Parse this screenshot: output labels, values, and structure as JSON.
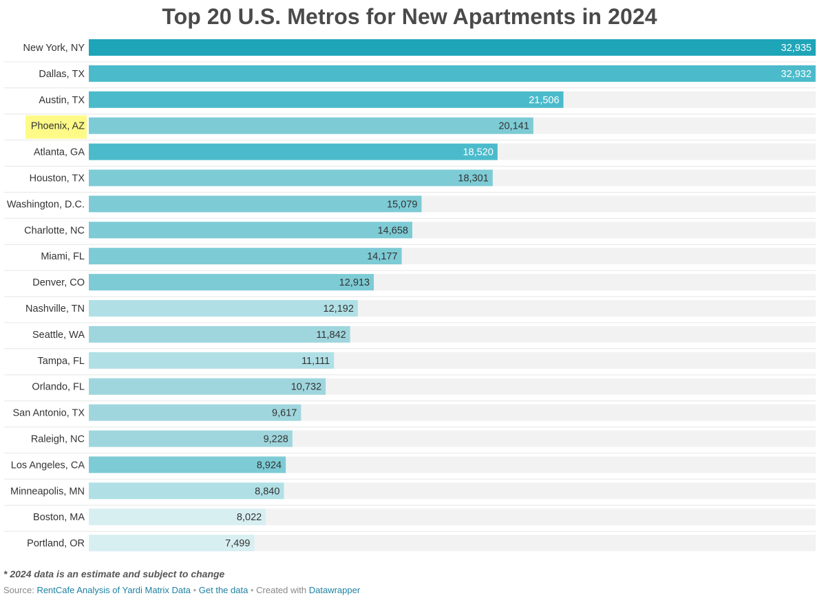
{
  "chart_data": {
    "type": "bar",
    "orientation": "horizontal",
    "title": "Top 20 U.S. Metros for New Apartments in 2024",
    "categories": [
      "New York, NY",
      "Dallas, TX",
      "Austin, TX",
      "Phoenix, AZ",
      "Atlanta, GA",
      "Houston, TX",
      "Washington, D.C.",
      "Charlotte, NC",
      "Miami, FL",
      "Denver, CO",
      "Nashville, TN",
      "Seattle, WA",
      "Tampa, FL",
      "Orlando, FL",
      "San Antonio, TX",
      "Raleigh, NC",
      "Los Angeles, CA",
      "Minneapolis, MN",
      "Boston, MA",
      "Portland, OR"
    ],
    "values": [
      32935,
      32932,
      21506,
      20141,
      18520,
      18301,
      15079,
      14658,
      14177,
      12913,
      12192,
      11842,
      11111,
      10732,
      9617,
      9228,
      8924,
      8840,
      8022,
      7499
    ],
    "value_labels": [
      "32,935",
      "32,932",
      "21,506",
      "20,141",
      "18,520",
      "18,301",
      "15,079",
      "14,658",
      "14,177",
      "12,913",
      "12,192",
      "11,842",
      "11,111",
      "10,732",
      "9,617",
      "9,228",
      "8,924",
      "8,840",
      "8,022",
      "7,499"
    ],
    "bar_colors": [
      "#1fa5b8",
      "#4bbbcb",
      "#4bbbcb",
      "#7dcbd5",
      "#4bbbcb",
      "#7dcbd5",
      "#7dcbd5",
      "#7dcbd5",
      "#7dcbd5",
      "#7dcbd5",
      "#b0e0e6",
      "#9fd6de",
      "#b0e0e6",
      "#9fd6de",
      "#9fd6de",
      "#9fd6de",
      "#7dcbd5",
      "#b0e0e6",
      "#d8eff2",
      "#d8eff2"
    ],
    "label_colors": [
      "#ffffff",
      "#ffffff",
      "#ffffff",
      "#333333",
      "#ffffff",
      "#333333",
      "#333333",
      "#333333",
      "#333333",
      "#333333",
      "#333333",
      "#333333",
      "#333333",
      "#333333",
      "#333333",
      "#333333",
      "#333333",
      "#333333",
      "#333333",
      "#333333"
    ],
    "highlighted_category": "Phoenix, AZ",
    "highlight_color": "#fefa87",
    "background_bar_color": "#f2f2f2",
    "xlim": [
      0,
      32935
    ]
  },
  "footnote": "* 2024 data is an estimate and subject to change",
  "source": {
    "prefix": "Source:",
    "source_link": "RentCafe Analysis of Yardi Matrix Data",
    "separator": "•",
    "get_data_link": "Get the data",
    "created_with": "Created with",
    "tool_link": "Datawrapper"
  }
}
